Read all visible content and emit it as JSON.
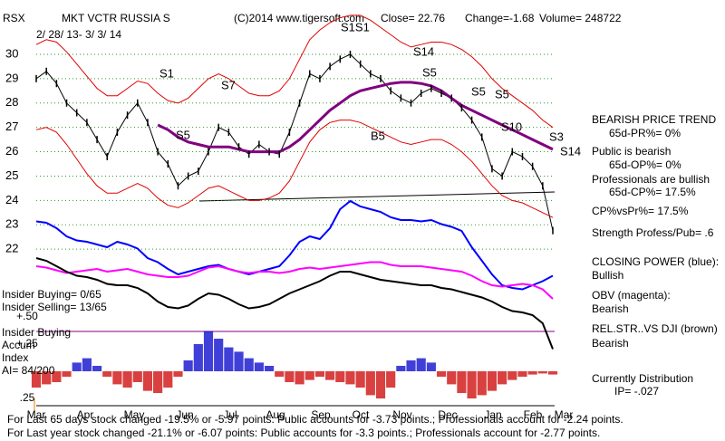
{
  "header": {
    "symbol": "RSX",
    "name": "MKT VCTR RUSSIA S",
    "copyright": "(C)2014 www.tigersoft.com",
    "close": "Close=  22.76",
    "change": "Change=-1.68",
    "volume": "Volume= 248722",
    "dates": "2/ 28/ 13- 3/ 3/ 14"
  },
  "insider": [
    "Insider Buying= 0/65",
    "Insider Selling= 13/65",
    "Insider Buying",
    "Accum",
    "Index",
    "AI= 84/200"
  ],
  "side_notes": [
    "BEARISH PRICE TREND",
    "65d-PR%= 0%",
    "Public is bearish",
    "65d-OP%= 0%",
    "Professionals are bullish",
    "65d-CP%= 17.5%",
    "CP%vsPr%=  17.5%",
    "Strength Profess/Pub= .6",
    "CLOSING POWER (blue):",
    "Bullish",
    "OBV (magenta):",
    "Bearish",
    "REL.STR..VS DJI (brown)",
    "Bearish",
    "Currently Distribution",
    "IP= -.027"
  ],
  "footer": [
    "For Last 65 days stock changed -19.5% or -5.97 points:  Public accounts for -3.73 points.;  Professionals account for -2.24 points.",
    "For Last year stock changed -21.1% or -6.07 points:  Public accounts for -3.3 points.;  Professionals account for -2.77 points."
  ],
  "chart_data": [
    {
      "type": "line",
      "ylim": [
        21.5,
        31.5
      ],
      "yticks": [
        22,
        23,
        24,
        25,
        26,
        27,
        28,
        29,
        30
      ],
      "grid": true,
      "months": [
        "Mar",
        "Apr",
        "May",
        "Jun",
        "Jul",
        "Aug",
        "Sep",
        "Oct",
        "Nov",
        "Dec",
        "Jan",
        "Feb",
        "Mar"
      ],
      "annotations": [
        "S1",
        "S7",
        "S5",
        "S1S1",
        "S14",
        "S5",
        "S5",
        "S5",
        "S10",
        "B5",
        "S3",
        "S14"
      ],
      "series": [
        {
          "name": "Price",
          "color": "#000000",
          "values": [
            29.0,
            29.3,
            28.8,
            28.0,
            27.6,
            27.2,
            26.5,
            25.8,
            26.8,
            27.5,
            28.0,
            27.2,
            26.0,
            25.5,
            24.6,
            25.0,
            25.2,
            26.0,
            27.0,
            26.8,
            26.2,
            25.9,
            26.3,
            26.0,
            25.9,
            26.8,
            28.0,
            29.2,
            29.0,
            29.5,
            29.8,
            30.0,
            29.6,
            29.2,
            29.0,
            28.5,
            28.2,
            28.0,
            28.4,
            28.6,
            28.4,
            28.2,
            27.8,
            27.3,
            26.6,
            25.3,
            25.0,
            26.0,
            25.8,
            25.4,
            24.6,
            22.76
          ]
        },
        {
          "name": "Upper Band",
          "color": "#e00000",
          "values": [
            30.4,
            30.6,
            30.5,
            30.1,
            29.6,
            29.1,
            28.6,
            28.3,
            28.3,
            28.6,
            28.9,
            28.8,
            28.4,
            28.1,
            28.0,
            28.2,
            28.6,
            29.0,
            29.2,
            29.0,
            28.7,
            28.4,
            28.3,
            28.3,
            28.5,
            29.0,
            29.8,
            30.6,
            31.0,
            31.3,
            31.5,
            31.6,
            31.6,
            31.4,
            31.1,
            30.8,
            30.5,
            30.3,
            30.4,
            30.5,
            30.5,
            30.4,
            30.2,
            29.9,
            29.5,
            29.0,
            28.6,
            28.3,
            28.0,
            27.7,
            27.3,
            27.0
          ]
        },
        {
          "name": "Lower Band",
          "color": "#e00000",
          "values": [
            26.9,
            27.0,
            26.8,
            26.3,
            25.7,
            25.1,
            24.6,
            24.3,
            24.3,
            24.5,
            24.7,
            24.5,
            24.1,
            23.8,
            23.7,
            23.9,
            24.2,
            24.5,
            24.6,
            24.4,
            24.2,
            24.0,
            24.0,
            24.1,
            24.3,
            24.8,
            25.6,
            26.4,
            26.9,
            27.2,
            27.3,
            27.3,
            27.2,
            27.0,
            26.8,
            26.6,
            26.4,
            26.3,
            26.4,
            26.5,
            26.5,
            26.3,
            26.0,
            25.6,
            25.1,
            24.6,
            24.2,
            24.0,
            23.9,
            23.7,
            23.5,
            23.3
          ]
        },
        {
          "name": "65-day MA",
          "color": "#800080",
          "values": [
            null,
            null,
            null,
            null,
            null,
            null,
            null,
            null,
            null,
            null,
            null,
            null,
            27.1,
            26.9,
            26.6,
            26.4,
            26.3,
            26.2,
            26.2,
            26.2,
            26.1,
            26.0,
            26.0,
            26.0,
            26.0,
            26.2,
            26.5,
            26.9,
            27.3,
            27.7,
            28.0,
            28.3,
            28.5,
            28.6,
            28.7,
            28.8,
            28.85,
            28.85,
            28.8,
            28.7,
            28.5,
            28.2,
            27.9,
            27.7,
            27.5,
            27.3,
            27.1,
            26.9,
            26.7,
            26.5,
            26.3,
            26.1
          ]
        }
      ]
    },
    {
      "type": "line",
      "ylim": [
        -20,
        100
      ],
      "series": [
        {
          "name": "Closing Power",
          "color": "#0000ff",
          "values": [
            77,
            76,
            72,
            66,
            63,
            62,
            60,
            58,
            62,
            60,
            57,
            50,
            47,
            42,
            38,
            40,
            42,
            44,
            45,
            42,
            40,
            38,
            40,
            42,
            44,
            52,
            62,
            66,
            64,
            72,
            86,
            92,
            88,
            86,
            84,
            80,
            78,
            78,
            77,
            78,
            75,
            73,
            70,
            58,
            48,
            38,
            30,
            28,
            27,
            30,
            33,
            37
          ]
        },
        {
          "name": "OBV",
          "color": "#ff00ff",
          "values": [
            44,
            43,
            41,
            39,
            40,
            41,
            42,
            40,
            41,
            42,
            40,
            38,
            37,
            36,
            36,
            37,
            40,
            43,
            44,
            42,
            40,
            39,
            40,
            40,
            39,
            40,
            42,
            43,
            42,
            43,
            44,
            45,
            46,
            47,
            47,
            45,
            44,
            44,
            44,
            43,
            42,
            41,
            40,
            37,
            33,
            30,
            29,
            30,
            31,
            30,
            27,
            20
          ]
        },
        {
          "name": "Rel. Strength",
          "color": "#000000",
          "values": [
            50,
            48,
            44,
            40,
            37,
            36,
            34,
            31,
            30,
            30,
            28,
            24,
            18,
            14,
            13,
            15,
            20,
            24,
            23,
            20,
            16,
            13,
            14,
            16,
            20,
            24,
            27,
            30,
            33,
            37,
            40,
            40,
            38,
            36,
            34,
            33,
            32,
            31,
            30,
            30,
            28,
            27,
            25,
            23,
            21,
            18,
            14,
            11,
            10,
            8,
            2,
            -17
          ]
        }
      ]
    },
    {
      "type": "bar",
      "ylim": [
        -0.3,
        0.6
      ],
      "yticks": [
        {
          "value": 0.5,
          "label": "+.50"
        },
        {
          "value": 0.25,
          "label": "+.25"
        },
        {
          "value": -0.25,
          "label": ".25"
        }
      ],
      "pos_color": "#0000cc",
      "neg_color": "#cc0000",
      "values": [
        -0.15,
        -0.12,
        -0.1,
        -0.05,
        0.08,
        0.12,
        0.05,
        -0.05,
        -0.12,
        -0.15,
        -0.1,
        -0.18,
        -0.2,
        -0.15,
        -0.05,
        0.1,
        0.25,
        0.37,
        0.3,
        0.22,
        0.18,
        0.12,
        0.08,
        0.05,
        -0.05,
        -0.1,
        -0.12,
        -0.08,
        -0.05,
        -0.08,
        -0.1,
        -0.12,
        -0.15,
        -0.22,
        -0.25,
        -0.15,
        0.05,
        0.1,
        0.12,
        0.08,
        -0.05,
        -0.12,
        -0.2,
        -0.25,
        -0.22,
        -0.18,
        -0.12,
        -0.08,
        -0.05,
        -0.03,
        -0.02,
        -0.03
      ]
    }
  ]
}
